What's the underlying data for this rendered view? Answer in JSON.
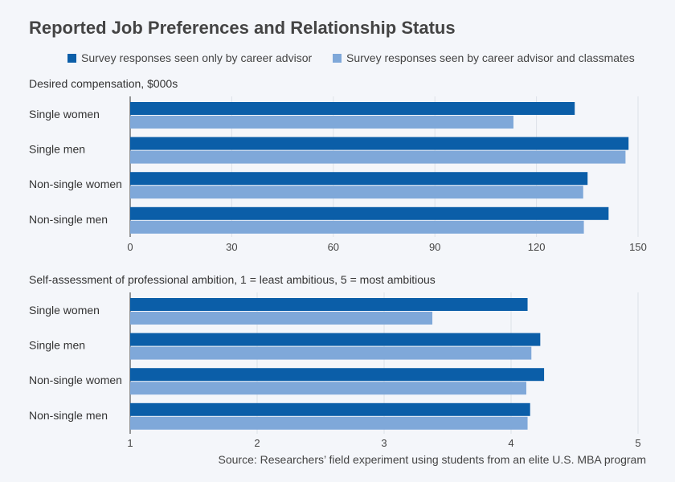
{
  "title": "Reported Job Preferences and Relationship Status",
  "legend": [
    {
      "label": "Survey responses seen only by career advisor",
      "color": "#0b5ea8"
    },
    {
      "label": "Survey responses seen by career advisor and classmates",
      "color": "#7fa8d9"
    }
  ],
  "source": "Source: Researchers’ field experiment using students from an elite U.S. MBA program",
  "chart_data": [
    {
      "type": "bar",
      "orientation": "horizontal",
      "title": "Desired compensation, $000s",
      "categories": [
        "Single women",
        "Single men",
        "Non-single women",
        "Non-single men"
      ],
      "series": [
        {
          "name": "Survey responses seen only by career advisor",
          "values": [
            131.3,
            147.2,
            135.1,
            141.3
          ]
        },
        {
          "name": "Survey responses seen by career advisor and classmates",
          "values": [
            113.2,
            146.3,
            133.8,
            134.0
          ]
        }
      ],
      "xlim": [
        0,
        150
      ],
      "xticks": [
        "0",
        "30",
        "60",
        "90",
        "120",
        "150"
      ],
      "grid": true
    },
    {
      "type": "bar",
      "orientation": "horizontal",
      "title": "Self-assessment of professional ambition, 1 = least ambitious, 5 = most ambitious",
      "categories": [
        "Single women",
        "Single men",
        "Non-single women",
        "Non-single men"
      ],
      "series": [
        {
          "name": "Survey responses seen only by career advisor",
          "values": [
            4.13,
            4.23,
            4.26,
            4.15
          ]
        },
        {
          "name": "Survey responses seen by career advisor and classmates",
          "values": [
            3.38,
            4.16,
            4.12,
            4.13
          ]
        }
      ],
      "xlim": [
        1,
        5
      ],
      "xticks": [
        "1",
        "2",
        "3",
        "4",
        "5"
      ],
      "grid": true
    }
  ]
}
